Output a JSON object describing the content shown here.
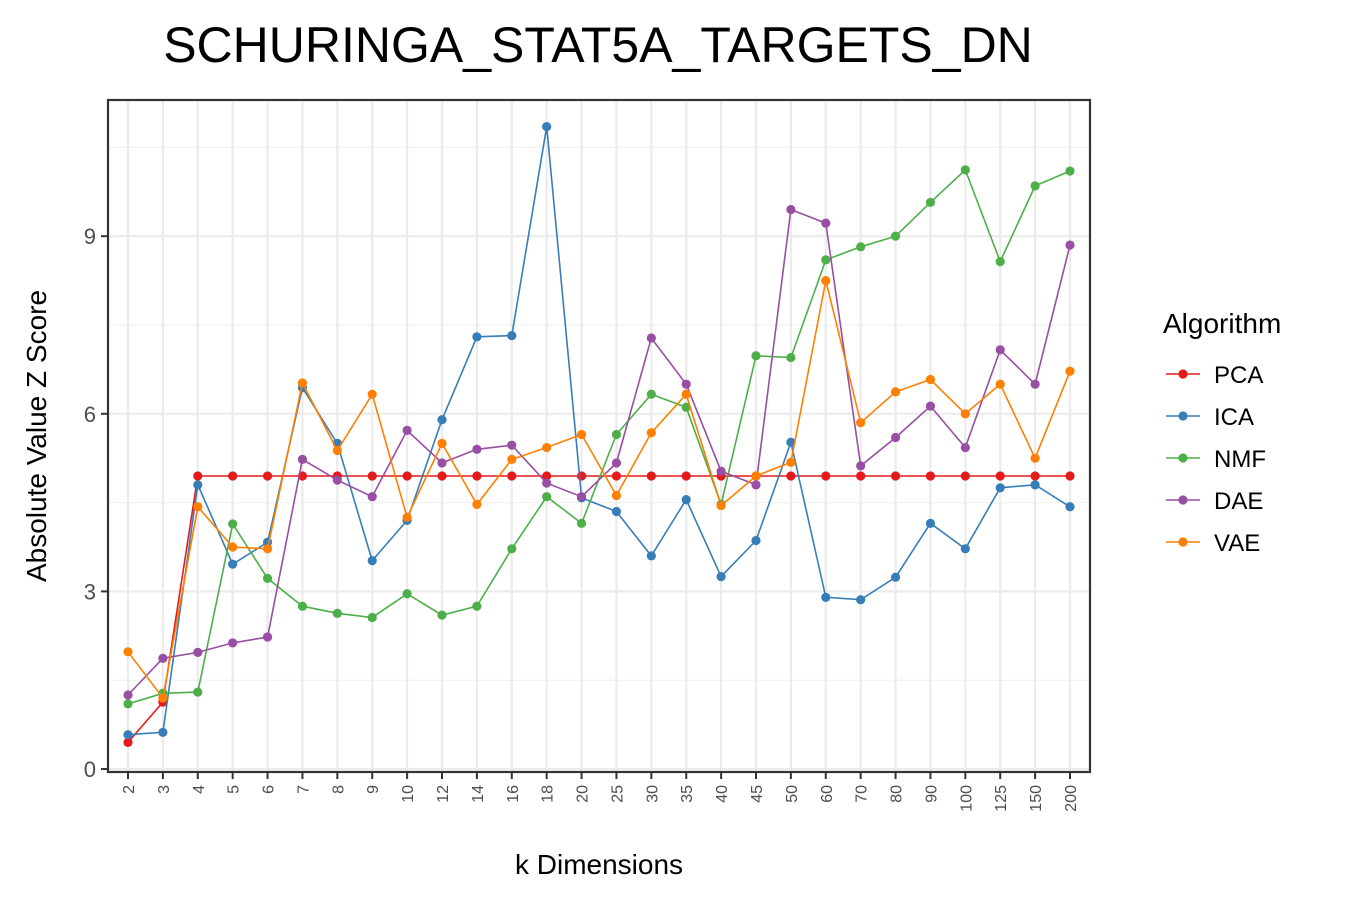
{
  "chart_data": {
    "type": "line",
    "title": "SCHURINGA_STAT5A_TARGETS_DN",
    "xlabel": "k Dimensions",
    "ylabel": "Absolute Value Z Score",
    "categories": [
      "2",
      "3",
      "4",
      "5",
      "6",
      "7",
      "8",
      "9",
      "10",
      "12",
      "14",
      "16",
      "18",
      "20",
      "25",
      "30",
      "35",
      "40",
      "45",
      "50",
      "60",
      "70",
      "80",
      "90",
      "100",
      "125",
      "150",
      "200"
    ],
    "yticks": [
      "0",
      "3",
      "6",
      "9"
    ],
    "ylim": [
      -0.05,
      11.3
    ],
    "grid": true,
    "legend_title": "Algorithm",
    "legend_position": "right",
    "series": [
      {
        "name": "PCA",
        "color": "#e41a1c",
        "values": [
          0.45,
          1.13,
          4.95,
          4.95,
          4.95,
          4.95,
          4.95,
          4.95,
          4.95,
          4.95,
          4.95,
          4.95,
          4.95,
          4.95,
          4.95,
          4.95,
          4.95,
          4.95,
          4.95,
          4.95,
          4.95,
          4.95,
          4.95,
          4.95,
          4.95,
          4.95,
          4.95,
          4.95
        ]
      },
      {
        "name": "ICA",
        "color": "#377eb8",
        "values": [
          0.58,
          0.62,
          4.8,
          3.46,
          3.83,
          6.44,
          5.5,
          3.52,
          4.2,
          5.9,
          7.3,
          7.32,
          10.85,
          4.58,
          4.35,
          3.6,
          4.55,
          3.25,
          3.86,
          5.52,
          2.9,
          2.86,
          3.24,
          4.15,
          3.72,
          4.75,
          4.8,
          4.43
        ]
      },
      {
        "name": "NMF",
        "color": "#4daf4a",
        "values": [
          1.1,
          1.28,
          1.3,
          4.14,
          3.22,
          2.75,
          2.63,
          2.56,
          2.96,
          2.6,
          2.75,
          3.72,
          4.6,
          4.15,
          5.65,
          6.33,
          6.11,
          4.47,
          6.98,
          6.95,
          8.6,
          8.82,
          9.0,
          9.57,
          10.12,
          8.57,
          9.85,
          10.1
        ]
      },
      {
        "name": "DAE",
        "color": "#984ea3",
        "values": [
          1.25,
          1.87,
          1.97,
          2.13,
          2.23,
          5.23,
          4.88,
          4.6,
          5.72,
          5.17,
          5.4,
          5.47,
          4.83,
          4.6,
          5.17,
          7.28,
          6.5,
          5.03,
          4.8,
          9.45,
          9.22,
          5.12,
          5.6,
          6.13,
          5.43,
          7.08,
          6.5,
          8.85
        ]
      },
      {
        "name": "VAE",
        "color": "#ff7f00",
        "values": [
          1.98,
          1.2,
          4.43,
          3.75,
          3.72,
          6.52,
          5.38,
          6.33,
          4.25,
          5.5,
          4.47,
          5.23,
          5.43,
          5.65,
          4.62,
          5.68,
          6.33,
          4.45,
          4.95,
          5.18,
          8.25,
          5.85,
          6.37,
          6.58,
          6.0,
          6.5,
          5.25,
          6.72
        ]
      }
    ]
  }
}
